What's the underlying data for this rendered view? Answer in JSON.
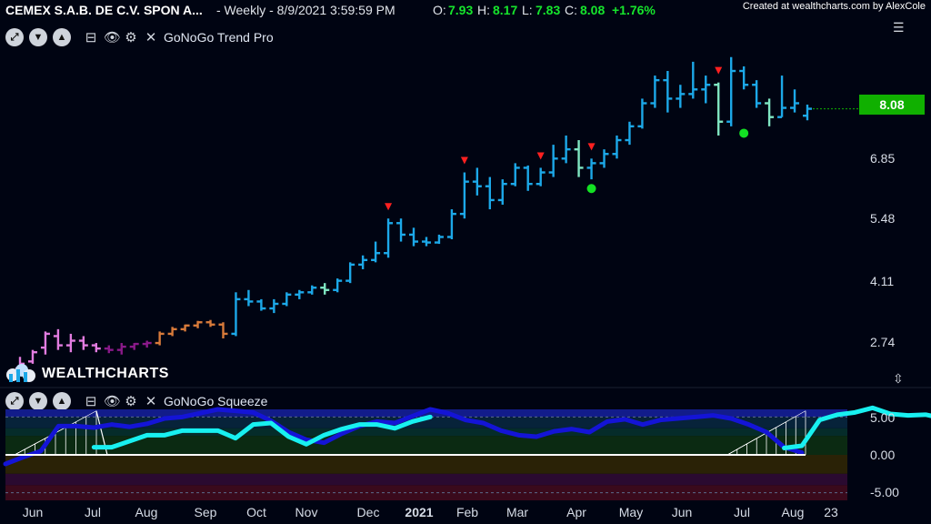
{
  "header": {
    "symbol": "CEMEX S.A.B. DE C.V. SPON A...",
    "interval": "- Weekly - 8/9/2021 3:59:59 PM",
    "open_label": "O:",
    "open_value": "7.93",
    "high_label": "H:",
    "high_value": "8.17",
    "low_label": "L:",
    "low_value": "7.83",
    "close_label": "C:",
    "close_value": "8.08",
    "change": "+1.76%",
    "credit": "Created at wealthcharts.com by AlexCole"
  },
  "upper_panel": {
    "indicator_name": "GoNoGo Trend Pro",
    "price_tag": "8.08",
    "y_ticks": [
      "6.85",
      "5.48",
      "4.11",
      "2.74"
    ]
  },
  "lower_panel": {
    "indicator_name": "GoNoGo Squeeze",
    "y_ticks": [
      "5.00",
      "0.00",
      "-5.00"
    ]
  },
  "x_ticks": [
    "Jun",
    "Jul",
    "Aug",
    "Sep",
    "Oct",
    "Nov",
    "Dec",
    "2021",
    "Feb",
    "Mar",
    "Apr",
    "May",
    "Jun",
    "Jul",
    "Aug",
    "23"
  ],
  "logo": "WEALTHCHARTS",
  "colors": {
    "background": "#000412",
    "go_strong": "#1ca8e8",
    "go_weak": "#7fe6c2",
    "nogo_strong": "#8a1a8a",
    "nogo_weak": "#e27ce0",
    "amber": "#d77a3a",
    "oscillator_blue": "#1414d6",
    "oscillator_cyan": "#18f0f0",
    "price_tag": "#10b000",
    "marker_red": "#ff2020",
    "marker_green": "#13e023"
  },
  "chart_data": [
    {
      "type": "ohlc",
      "title": "CEMEX S.A.B. DE C.V. SPON A...",
      "interval": "Weekly",
      "y_ticks": [
        2.74,
        4.11,
        5.48,
        6.85
      ],
      "ylim": [
        2.35,
        9.65
      ],
      "last_close": 8.08,
      "bars": [
        {
          "o": 2.45,
          "h": 2.7,
          "l": 2.4,
          "c": 2.55,
          "col": "nogo_weak"
        },
        {
          "o": 2.6,
          "h": 2.85,
          "l": 2.55,
          "c": 2.8,
          "col": "nogo_weak"
        },
        {
          "o": 2.9,
          "h": 3.25,
          "l": 2.75,
          "c": 3.2,
          "col": "nogo_weak"
        },
        {
          "o": 3.15,
          "h": 3.3,
          "l": 2.85,
          "c": 2.95,
          "col": "nogo_weak"
        },
        {
          "o": 2.95,
          "h": 3.2,
          "l": 2.8,
          "c": 3.05,
          "col": "nogo_weak"
        },
        {
          "o": 3.05,
          "h": 3.15,
          "l": 2.85,
          "c": 2.95,
          "col": "nogo_weak"
        },
        {
          "o": 2.95,
          "h": 3.0,
          "l": 2.8,
          "c": 2.88,
          "col": "nogo_weak"
        },
        {
          "o": 2.88,
          "h": 2.95,
          "l": 2.78,
          "c": 2.85,
          "col": "nogo_strong"
        },
        {
          "o": 2.85,
          "h": 3.0,
          "l": 2.75,
          "c": 2.92,
          "col": "nogo_strong"
        },
        {
          "o": 2.92,
          "h": 3.0,
          "l": 2.85,
          "c": 2.98,
          "col": "nogo_strong"
        },
        {
          "o": 2.98,
          "h": 3.05,
          "l": 2.9,
          "c": 3.0,
          "col": "nogo_strong"
        },
        {
          "o": 3.0,
          "h": 3.25,
          "l": 2.95,
          "c": 3.2,
          "col": "amber"
        },
        {
          "o": 3.2,
          "h": 3.35,
          "l": 3.15,
          "c": 3.3,
          "col": "amber"
        },
        {
          "o": 3.3,
          "h": 3.4,
          "l": 3.25,
          "c": 3.38,
          "col": "amber"
        },
        {
          "o": 3.38,
          "h": 3.48,
          "l": 3.32,
          "c": 3.45,
          "col": "amber"
        },
        {
          "o": 3.45,
          "h": 3.5,
          "l": 3.35,
          "c": 3.4,
          "col": "amber"
        },
        {
          "o": 3.4,
          "h": 3.45,
          "l": 3.1,
          "c": 3.2,
          "col": "amber"
        },
        {
          "o": 3.2,
          "h": 4.1,
          "l": 3.15,
          "c": 3.95,
          "col": "go_strong"
        },
        {
          "o": 3.95,
          "h": 4.15,
          "l": 3.8,
          "c": 3.9,
          "col": "go_strong"
        },
        {
          "o": 3.9,
          "h": 3.95,
          "l": 3.7,
          "c": 3.75,
          "col": "go_strong"
        },
        {
          "o": 3.75,
          "h": 3.95,
          "l": 3.65,
          "c": 3.85,
          "col": "go_strong"
        },
        {
          "o": 3.85,
          "h": 4.1,
          "l": 3.8,
          "c": 4.05,
          "col": "go_strong"
        },
        {
          "o": 4.05,
          "h": 4.15,
          "l": 3.95,
          "c": 4.1,
          "col": "go_strong"
        },
        {
          "o": 4.1,
          "h": 4.25,
          "l": 4.05,
          "c": 4.2,
          "col": "go_strong"
        },
        {
          "o": 4.2,
          "h": 4.3,
          "l": 4.05,
          "c": 4.15,
          "col": "go_weak"
        },
        {
          "o": 4.15,
          "h": 4.4,
          "l": 4.1,
          "c": 4.35,
          "col": "go_strong"
        },
        {
          "o": 4.35,
          "h": 4.75,
          "l": 4.3,
          "c": 4.7,
          "col": "go_strong"
        },
        {
          "o": 4.7,
          "h": 4.9,
          "l": 4.6,
          "c": 4.8,
          "col": "go_strong"
        },
        {
          "o": 4.8,
          "h": 5.2,
          "l": 4.75,
          "c": 4.95,
          "col": "go_strong"
        },
        {
          "o": 4.95,
          "h": 5.7,
          "l": 4.85,
          "c": 5.6,
          "col": "go_strong"
        },
        {
          "o": 5.6,
          "h": 5.7,
          "l": 5.2,
          "c": 5.35,
          "col": "go_strong"
        },
        {
          "o": 5.35,
          "h": 5.5,
          "l": 5.1,
          "c": 5.2,
          "col": "go_strong"
        },
        {
          "o": 5.2,
          "h": 5.3,
          "l": 5.1,
          "c": 5.18,
          "col": "go_strong"
        },
        {
          "o": 5.18,
          "h": 5.35,
          "l": 5.15,
          "c": 5.3,
          "col": "go_strong"
        },
        {
          "o": 5.3,
          "h": 5.9,
          "l": 5.25,
          "c": 5.8,
          "col": "go_strong"
        },
        {
          "o": 5.8,
          "h": 6.7,
          "l": 5.7,
          "c": 6.5,
          "col": "go_strong"
        },
        {
          "o": 6.5,
          "h": 6.8,
          "l": 6.2,
          "c": 6.4,
          "col": "go_strong"
        },
        {
          "o": 6.4,
          "h": 6.6,
          "l": 5.9,
          "c": 6.1,
          "col": "go_strong"
        },
        {
          "o": 6.1,
          "h": 6.55,
          "l": 6.0,
          "c": 6.45,
          "col": "go_strong"
        },
        {
          "o": 6.45,
          "h": 6.9,
          "l": 6.4,
          "c": 6.8,
          "col": "go_strong"
        },
        {
          "o": 6.8,
          "h": 6.85,
          "l": 6.3,
          "c": 6.45,
          "col": "go_strong"
        },
        {
          "o": 6.45,
          "h": 6.8,
          "l": 6.4,
          "c": 6.7,
          "col": "go_strong"
        },
        {
          "o": 6.7,
          "h": 7.3,
          "l": 6.6,
          "c": 7.0,
          "col": "go_strong"
        },
        {
          "o": 7.0,
          "h": 7.5,
          "l": 6.9,
          "c": 7.2,
          "col": "go_strong"
        },
        {
          "o": 7.2,
          "h": 7.4,
          "l": 6.6,
          "c": 6.8,
          "col": "go_weak"
        },
        {
          "o": 6.8,
          "h": 7.0,
          "l": 6.55,
          "c": 6.9,
          "col": "go_strong"
        },
        {
          "o": 6.9,
          "h": 7.2,
          "l": 6.8,
          "c": 7.1,
          "col": "go_strong"
        },
        {
          "o": 7.1,
          "h": 7.5,
          "l": 7.0,
          "c": 7.4,
          "col": "go_strong"
        },
        {
          "o": 7.4,
          "h": 7.8,
          "l": 7.3,
          "c": 7.7,
          "col": "go_strong"
        },
        {
          "o": 7.7,
          "h": 8.3,
          "l": 7.65,
          "c": 8.2,
          "col": "go_strong"
        },
        {
          "o": 8.2,
          "h": 8.8,
          "l": 8.1,
          "c": 8.7,
          "col": "go_strong"
        },
        {
          "o": 8.7,
          "h": 8.9,
          "l": 8.0,
          "c": 8.3,
          "col": "go_strong"
        },
        {
          "o": 8.3,
          "h": 8.6,
          "l": 8.1,
          "c": 8.4,
          "col": "go_strong"
        },
        {
          "o": 8.4,
          "h": 9.1,
          "l": 8.3,
          "c": 8.5,
          "col": "go_strong"
        },
        {
          "o": 8.5,
          "h": 8.8,
          "l": 8.2,
          "c": 8.6,
          "col": "go_strong"
        },
        {
          "o": 8.6,
          "h": 8.65,
          "l": 7.5,
          "c": 7.8,
          "col": "go_weak"
        },
        {
          "o": 7.8,
          "h": 9.2,
          "l": 7.7,
          "c": 8.9,
          "col": "go_strong"
        },
        {
          "o": 8.9,
          "h": 9.0,
          "l": 8.5,
          "c": 8.6,
          "col": "go_strong"
        },
        {
          "o": 8.6,
          "h": 8.7,
          "l": 8.1,
          "c": 8.2,
          "col": "go_strong"
        },
        {
          "o": 8.2,
          "h": 8.3,
          "l": 7.7,
          "c": 7.9,
          "col": "go_weak"
        },
        {
          "o": 7.9,
          "h": 8.8,
          "l": 7.9,
          "c": 8.1,
          "col": "go_strong"
        },
        {
          "o": 8.1,
          "h": 8.5,
          "l": 8.0,
          "c": 8.2,
          "col": "go_strong"
        },
        {
          "o": 7.93,
          "h": 8.17,
          "l": 7.83,
          "c": 8.08,
          "col": "go_strong"
        }
      ],
      "red_markers_at_bars": [
        29,
        35,
        41,
        45,
        55
      ],
      "green_dots": [
        {
          "bar": 45,
          "value": 6.35
        },
        {
          "bar": 57,
          "value": 7.55
        }
      ]
    },
    {
      "type": "line",
      "title": "GoNoGo Squeeze",
      "y_ticks": [
        5,
        0,
        -5
      ],
      "ylim": [
        -6,
        6
      ],
      "series": [
        {
          "color": "oscillator_blue",
          "values": [
            -1.2,
            -0.3,
            0.5,
            3.8,
            3.8,
            3.6,
            4.0,
            3.7,
            4.1,
            4.8,
            5.0,
            5.5,
            6.0,
            5.8,
            5.6,
            4.5,
            3.0,
            2.0,
            1.6,
            2.8,
            3.8,
            4.4,
            4.2,
            5.1,
            6.0,
            5.5,
            4.6,
            4.2,
            3.2,
            2.6,
            2.4,
            3.1,
            3.4,
            3.0,
            4.4,
            4.7,
            4.0,
            4.6,
            4.8,
            5.0,
            5.2,
            4.8,
            4.0,
            3.0,
            1.0,
            0.3
          ]
        },
        {
          "color": "oscillator_cyan",
          "start": 5,
          "values": [
            1.0,
            1.0,
            1.8,
            2.6,
            2.6,
            3.2,
            3.2,
            3.2,
            2.2,
            4.0,
            4.2,
            2.4,
            1.4,
            2.6,
            3.4,
            4.0,
            4.0,
            3.5,
            4.4,
            5.0
          ]
        },
        {
          "color": "oscillator_cyan",
          "start": 44,
          "values": [
            0.9,
            1.2,
            4.6,
            5.3,
            5.6,
            6.2,
            5.4,
            5.2,
            5.3,
            4.8,
            3.2,
            0.5,
            1.3,
            0.3,
            0.2,
            0.2,
            0.2,
            0.2,
            0.2,
            0.2,
            0.2
          ]
        }
      ],
      "zero_line": 0
    }
  ]
}
